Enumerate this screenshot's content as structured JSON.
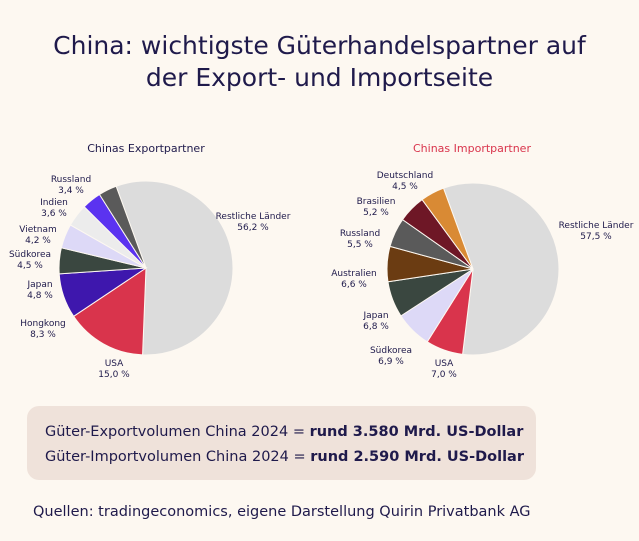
{
  "title_line1": "China: wichtigste Güterhandelspartner auf",
  "title_line2": "der Export- und Importseite",
  "chart_data": [
    {
      "type": "pie",
      "title": "Chinas Exportpartner",
      "title_color": "#1f1a4b",
      "slices": [
        {
          "label": "Restliche Länder",
          "value_text": "56,2 %",
          "value": 56.2,
          "color": "#dcdcdc"
        },
        {
          "label": "USA",
          "value_text": "15,0 %",
          "value": 15.0,
          "color": "#d9344c"
        },
        {
          "label": "Hongkong",
          "value_text": "8,3 %",
          "value": 8.3,
          "color": "#3e17ad"
        },
        {
          "label": "Japan",
          "value_text": "4,8 %",
          "value": 4.8,
          "color": "#3a4740"
        },
        {
          "label": "Südkorea",
          "value_text": "4,5 %",
          "value": 4.5,
          "color": "#ddd9f7"
        },
        {
          "label": "Vietnam",
          "value_text": "4,2 %",
          "value": 4.2,
          "color": "#ececec"
        },
        {
          "label": "Indien",
          "value_text": "3,6 %",
          "value": 3.6,
          "color": "#5b33f0"
        },
        {
          "label": "Russland",
          "value_text": "3,4 %",
          "value": 3.4,
          "color": "#5a5a5a"
        }
      ]
    },
    {
      "type": "pie",
      "title": "Chinas Importpartner",
      "title_color": "#d9344c",
      "slices": [
        {
          "label": "Restliche Länder",
          "value_text": "57,5 %",
          "value": 57.5,
          "color": "#dcdcdc"
        },
        {
          "label": "USA",
          "value_text": "7,0 %",
          "value": 7.0,
          "color": "#d9344c"
        },
        {
          "label": "Südkorea",
          "value_text": "6,9 %",
          "value": 6.9,
          "color": "#ddd9f7"
        },
        {
          "label": "Japan",
          "value_text": "6,8 %",
          "value": 6.8,
          "color": "#3a4740"
        },
        {
          "label": "Australien",
          "value_text": "6,6 %",
          "value": 6.6,
          "color": "#6b3c12"
        },
        {
          "label": "Russland",
          "value_text": "5,5 %",
          "value": 5.5,
          "color": "#5a5a5a"
        },
        {
          "label": "Brasilien",
          "value_text": "5,2 %",
          "value": 5.2,
          "color": "#6e1726"
        },
        {
          "label": "Deutschland",
          "value_text": "4,5 %",
          "value": 4.5,
          "color": "#d98a34"
        }
      ]
    }
  ],
  "summary": {
    "export_prefix": "Güter-Exportvolumen China 2024 = ",
    "export_value": "rund 3.580 Mrd. US-Dollar",
    "import_prefix": "Güter-Importvolumen China 2024 = ",
    "import_value": "rund 2.590 Mrd. US-Dollar"
  },
  "source": "Quellen: tradingeconomics, eigene Darstellung Quirin Privatbank AG"
}
